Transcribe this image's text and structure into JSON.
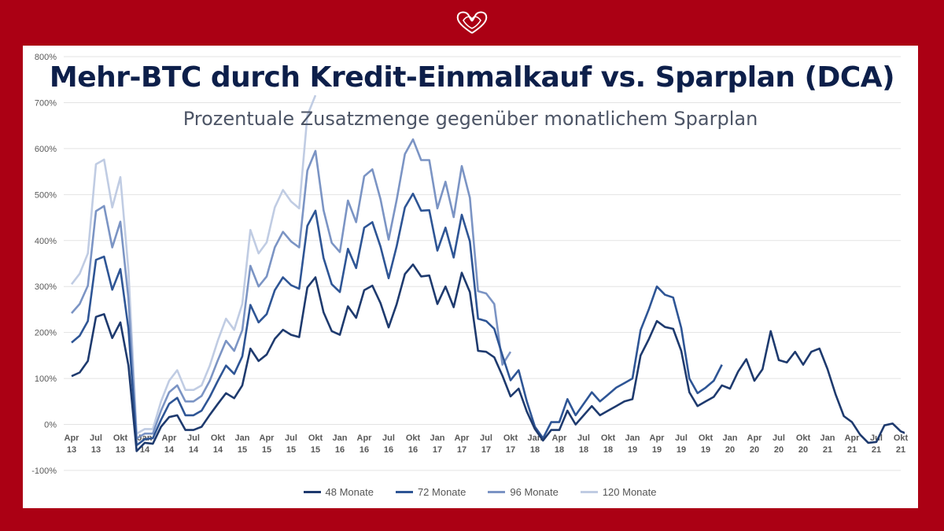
{
  "logo": {
    "icon": "intertwined-hearts-icon",
    "color": "#ffffff"
  },
  "colors": {
    "background": "#ab0014",
    "panel": "#ffffff",
    "title": "#0d1f4a"
  },
  "chart_data": {
    "type": "line",
    "title": "Mehr-BTC durch Kredit-Einmalkauf vs. Sparplan (DCA)",
    "subtitle": "Prozentuale Zusatzmenge gegenüber monatlichem Sparplan",
    "ylim": [
      -100,
      800
    ],
    "yticks": [
      -100,
      0,
      100,
      200,
      300,
      400,
      500,
      600,
      700,
      800
    ],
    "ytick_labels": [
      "-100%",
      "0%",
      "100%",
      "200%",
      "300%",
      "400%",
      "500%",
      "600%",
      "700%",
      "800%"
    ],
    "x_start": "Apr 13",
    "x_end": "Okt 21",
    "xticks": [
      {
        "index": 0,
        "label": [
          "Apr",
          "13"
        ]
      },
      {
        "index": 3,
        "label": [
          "Jul",
          "13"
        ]
      },
      {
        "index": 6,
        "label": [
          "Okt",
          "13"
        ]
      },
      {
        "index": 9,
        "label": [
          "Jan",
          "14"
        ]
      },
      {
        "index": 12,
        "label": [
          "Apr",
          "14"
        ]
      },
      {
        "index": 15,
        "label": [
          "Jul",
          "14"
        ]
      },
      {
        "index": 18,
        "label": [
          "Okt",
          "14"
        ]
      },
      {
        "index": 21,
        "label": [
          "Jan",
          "15"
        ]
      },
      {
        "index": 24,
        "label": [
          "Apr",
          "15"
        ]
      },
      {
        "index": 27,
        "label": [
          "Jul",
          "15"
        ]
      },
      {
        "index": 30,
        "label": [
          "Okt",
          "15"
        ]
      },
      {
        "index": 33,
        "label": [
          "Jan",
          "16"
        ]
      },
      {
        "index": 36,
        "label": [
          "Apr",
          "16"
        ]
      },
      {
        "index": 39,
        "label": [
          "Jul",
          "16"
        ]
      },
      {
        "index": 42,
        "label": [
          "Okt",
          "16"
        ]
      },
      {
        "index": 45,
        "label": [
          "Jan",
          "17"
        ]
      },
      {
        "index": 48,
        "label": [
          "Apr",
          "17"
        ]
      },
      {
        "index": 51,
        "label": [
          "Jul",
          "17"
        ]
      },
      {
        "index": 54,
        "label": [
          "Okt",
          "17"
        ]
      },
      {
        "index": 57,
        "label": [
          "Jan",
          "18"
        ]
      },
      {
        "index": 60,
        "label": [
          "Apr",
          "18"
        ]
      },
      {
        "index": 63,
        "label": [
          "Jul",
          "18"
        ]
      },
      {
        "index": 66,
        "label": [
          "Okt",
          "18"
        ]
      },
      {
        "index": 69,
        "label": [
          "Jan",
          "19"
        ]
      },
      {
        "index": 72,
        "label": [
          "Apr",
          "19"
        ]
      },
      {
        "index": 75,
        "label": [
          "Jul",
          "19"
        ]
      },
      {
        "index": 78,
        "label": [
          "Okt",
          "19"
        ]
      },
      {
        "index": 81,
        "label": [
          "Jan",
          "20"
        ]
      },
      {
        "index": 84,
        "label": [
          "Apr",
          "20"
        ]
      },
      {
        "index": 87,
        "label": [
          "Jul",
          "20"
        ]
      },
      {
        "index": 90,
        "label": [
          "Okt",
          "20"
        ]
      },
      {
        "index": 93,
        "label": [
          "Jan",
          "21"
        ]
      },
      {
        "index": 96,
        "label": [
          "Apr",
          "21"
        ]
      },
      {
        "index": 99,
        "label": [
          "Jul",
          "21"
        ]
      },
      {
        "index": 102,
        "label": [
          "Okt",
          "21"
        ]
      }
    ],
    "legend_position": "bottom",
    "grid": true,
    "series": [
      {
        "name": "48 Monate",
        "color": "#1e3a6e",
        "values": [
          105,
          113,
          138,
          234,
          240,
          188,
          222,
          128,
          -58,
          -40,
          -42,
          -5,
          16,
          20,
          -12,
          -12,
          -5,
          21,
          45,
          68,
          57,
          85,
          165,
          138,
          152,
          186,
          206,
          195,
          190,
          298,
          320,
          244,
          203,
          195,
          257,
          232,
          292,
          302,
          264,
          211,
          262,
          327,
          348,
          322,
          324,
          262,
          300,
          255,
          330,
          288,
          160,
          158,
          146,
          106,
          61,
          78,
          28,
          -10,
          -35,
          -12,
          -12,
          30,
          0,
          20,
          40,
          20,
          30,
          40,
          50,
          55,
          150,
          185,
          225,
          212,
          208,
          160,
          70,
          40,
          50,
          60,
          85,
          78,
          115,
          142,
          95,
          120,
          203,
          140,
          135,
          158,
          130,
          158,
          165,
          120,
          65,
          18,
          5,
          -22,
          -40,
          -38,
          -2,
          2,
          -15,
          -22,
          -18
        ]
      },
      {
        "name": "72 Monate",
        "color": "#2e5595",
        "values": [
          178,
          193,
          225,
          358,
          365,
          293,
          338,
          208,
          -45,
          -32,
          -30,
          10,
          45,
          58,
          20,
          20,
          30,
          60,
          95,
          128,
          110,
          148,
          260,
          222,
          240,
          292,
          320,
          303,
          295,
          432,
          465,
          362,
          305,
          288,
          382,
          340,
          428,
          440,
          387,
          318,
          388,
          472,
          502,
          465,
          466,
          378,
          428,
          363,
          456,
          398,
          230,
          225,
          208,
          150,
          96,
          118,
          50,
          -5,
          -30,
          5,
          5,
          55,
          20,
          45,
          70,
          50,
          65,
          80,
          90,
          100,
          205,
          250,
          300,
          282,
          276,
          210,
          100,
          68,
          80,
          95,
          130
        ]
      },
      {
        "name": "96 Monate",
        "color": "#7b94c4",
        "values": [
          242,
          262,
          302,
          464,
          475,
          385,
          441,
          273,
          -30,
          -20,
          -20,
          30,
          70,
          85,
          50,
          50,
          62,
          95,
          140,
          182,
          160,
          205,
          345,
          300,
          322,
          385,
          419,
          398,
          385,
          552,
          595,
          466,
          395,
          375,
          487,
          440,
          540,
          555,
          490,
          402,
          489,
          588,
          620,
          575,
          575,
          470,
          528,
          451,
          562,
          493,
          290,
          285,
          262,
          130,
          158
        ]
      },
      {
        "name": "120 Monate",
        "color": "#c0cce3",
        "values": [
          305,
          328,
          372,
          566,
          576,
          472,
          538,
          335,
          -20,
          -10,
          -10,
          50,
          95,
          118,
          75,
          75,
          85,
          128,
          183,
          230,
          206,
          262,
          423,
          372,
          396,
          472,
          510,
          485,
          470,
          672,
          716
        ]
      }
    ]
  }
}
